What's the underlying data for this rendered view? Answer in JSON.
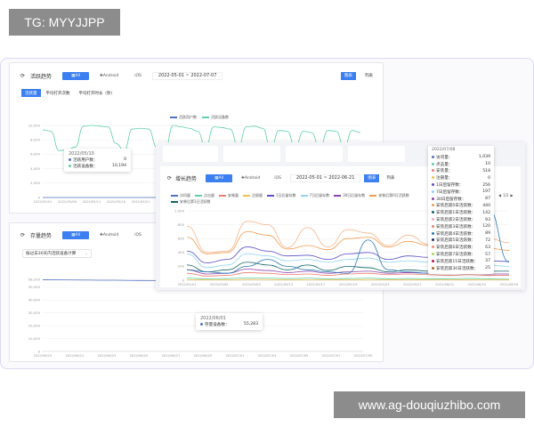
{
  "watermark_top": "TG: MYYJJPP",
  "watermark_bottom": "www.ag-douqiuzhibo.com",
  "filters": {
    "all": "All",
    "android": "Android",
    "ios": "iOS"
  },
  "view": {
    "chart": "图表",
    "list": "列表"
  },
  "active": {
    "title": "活跃趋势",
    "date_range": "2022-05-01 ~ 2022-07-07",
    "tabs": [
      "活跃量",
      "平均打开次数",
      "平均打开时长（秒）"
    ],
    "tooltip": {
      "date": "2022/05/10",
      "rows": [
        {
          "label": "活跃用户数：",
          "value": "0",
          "color": "#5470c6"
        },
        {
          "label": "活跃设备数：",
          "value": "10,194",
          "color": "#5fd0a6"
        }
      ]
    }
  },
  "growth": {
    "title": "增长趋势",
    "date_range": "2022-05-01 ~ 2022-06-21",
    "pager": "1/2",
    "tooltip": {
      "date": "2022/07/08",
      "rows": [
        {
          "label": "访问量：",
          "value": "1,039",
          "color": "#5470c6"
        },
        {
          "label": "点击量：",
          "value": "10",
          "color": "#5fd0a6"
        },
        {
          "label": "安装量：",
          "value": "518",
          "color": "#ee7b6e"
        },
        {
          "label": "注册量：",
          "value": "0",
          "color": "#f2c14e"
        },
        {
          "label": "1日后留存数：",
          "value": "256",
          "color": "#5b4fc9"
        },
        {
          "label": "7日后留存数：",
          "value": "197",
          "color": "#8fd3f0"
        },
        {
          "label": "30日后留存数：",
          "value": "87",
          "color": "#8e44ad"
        },
        {
          "label": "安装后第0日活跃数：",
          "value": "440",
          "color": "#f39c4f"
        },
        {
          "label": "安装后第1日活跃数：",
          "value": "142",
          "color": "#116466"
        },
        {
          "label": "安装后第2日活跃数：",
          "value": "93",
          "color": "#f4a6c6"
        },
        {
          "label": "安装后第3日活跃数：",
          "value": "120",
          "color": "#e8826a"
        },
        {
          "label": "安装后第4日活跃数：",
          "value": "89",
          "color": "#2b7bb9"
        },
        {
          "label": "安装后第5日活跃数：",
          "value": "72",
          "color": "#1f2a6b"
        },
        {
          "label": "安装后第6日活跃数：",
          "value": "63",
          "color": "#f28c6f"
        },
        {
          "label": "安装后第7日活跃数：",
          "value": "57",
          "color": "#a8d65a"
        },
        {
          "label": "安装后第15日活跃数：",
          "value": "37",
          "color": "#c2185b"
        },
        {
          "label": "安装后第30日活跃数：",
          "value": "25",
          "color": "#b5651d"
        }
      ]
    }
  },
  "stock": {
    "title": "存量趋势",
    "select": "按过去30天内活跃设备计算",
    "tooltip": {
      "date": "2022/06/01",
      "rows": [
        {
          "label": "存量设备数：",
          "value": "55,283",
          "color": "#5470c6"
        }
      ]
    }
  },
  "chart_data": [
    {
      "type": "line",
      "legend": [
        "活跃用户数",
        "活跃设备数"
      ],
      "legend_position": "top",
      "ylim": [
        0,
        10000
      ],
      "yticks": [
        "0",
        "2,000",
        "4,000",
        "6,000",
        "8,000",
        "10,000"
      ],
      "xticks": [
        "2022/05/01",
        "2022/05/06",
        "2022/05/11",
        "2022/05/16",
        "2022/05/21"
      ],
      "series": [
        {
          "name": "活跃用户数",
          "color": "#5470c6",
          "values": [
            0,
            0,
            0,
            0,
            0,
            0,
            0,
            0,
            0,
            0,
            0,
            0,
            0,
            0,
            0,
            0,
            0,
            0,
            0,
            0,
            0,
            0,
            0,
            0,
            0,
            0,
            0,
            0,
            0,
            0,
            0,
            0,
            0,
            0,
            0,
            0,
            0,
            0,
            0,
            0
          ]
        },
        {
          "name": "活跃设备数",
          "color": "#5fd0a6",
          "values": [
            9400,
            9200,
            6500,
            6600,
            7000,
            9900,
            10000,
            9900,
            9800,
            7500,
            6500,
            9500,
            9600,
            9500,
            7000,
            6500,
            10000,
            9800,
            9600,
            9200,
            7000,
            9800,
            9700,
            9500,
            7000,
            9800,
            9900,
            9600,
            6800,
            9300,
            9200,
            7000,
            9200,
            9000,
            6800,
            9300,
            9200,
            7000,
            9300,
            9000
          ]
        }
      ]
    },
    {
      "type": "line",
      "legend": [
        "访问量",
        "点击量",
        "安装量",
        "注册量",
        "1日后留存数",
        "7日后留存数",
        "30日后留存数",
        "安装后第0日活跃数",
        "安装后第1日活跃数"
      ],
      "legend_position": "top",
      "ylim": [
        0,
        1000
      ],
      "yticks": [
        "0",
        "200",
        "400",
        "600",
        "800",
        "1,000"
      ],
      "xticks": [
        "2022/05/01",
        "2022/05/05",
        "2022/05/09",
        "2022/05/13",
        "2022/05/17",
        "2022/05/19",
        "2022/05/23",
        "2022/05/27",
        "2022/06/02",
        "2022/06/10",
        "2022/06/18"
      ],
      "series": [
        {
          "name": "安装后第0日活跃数·上",
          "color": "#f6b48a",
          "values": [
            780,
            400,
            420,
            850,
            800,
            470,
            760,
            480,
            730,
            680,
            500,
            650,
            520,
            640,
            650,
            600,
            540
          ]
        },
        {
          "name": "安装后第0日活跃数",
          "color": "#f39c4f",
          "values": [
            620,
            380,
            400,
            700,
            650,
            450,
            500,
            440,
            600,
            620,
            480,
            560,
            500,
            520,
            480,
            460,
            430
          ]
        },
        {
          "name": "1日后留存数",
          "color": "#5b4fc9",
          "values": [
            420,
            250,
            300,
            480,
            420,
            350,
            360,
            300,
            380,
            400,
            300,
            350,
            330,
            300,
            350,
            280,
            270
          ]
        },
        {
          "name": "7日后留存数",
          "color": "#8fd3f0",
          "values": [
            380,
            180,
            220,
            380,
            350,
            280,
            300,
            260,
            300,
            320,
            260,
            280,
            260,
            240,
            260,
            220,
            200
          ]
        },
        {
          "name": "安装后第1日活跃数",
          "color": "#116466",
          "values": [
            220,
            120,
            150,
            260,
            220,
            150,
            220,
            140,
            200,
            180,
            120,
            150,
            130,
            130,
            140,
            130,
            130
          ]
        },
        {
          "name": "30日后留存数",
          "color": "#8e44ad",
          "values": [
            150,
            90,
            100,
            160,
            140,
            110,
            130,
            100,
            120,
            130,
            100,
            110,
            100,
            110,
            100,
            90,
            90
          ]
        },
        {
          "name": "安装量",
          "color": "#ee7b6e",
          "values": [
            100,
            60,
            70,
            110,
            100,
            80,
            90,
            70,
            90,
            100,
            80,
            90,
            80,
            70,
            80,
            70,
            70
          ]
        },
        {
          "name": "点击量",
          "color": "#5fd0a6",
          "values": [
            30,
            20,
            25,
            35,
            30,
            25,
            30,
            20,
            25,
            30,
            20,
            25,
            20,
            20,
            25,
            20,
            15
          ]
        },
        {
          "name": "注册量",
          "color": "#f2c14e",
          "values": [
            10,
            5,
            8,
            12,
            10,
            8,
            10,
            6,
            8,
            10,
            6,
            8,
            6,
            6,
            8,
            5,
            5
          ]
        },
        {
          "name": "访问量",
          "color": "#2b7bb9",
          "values": [
            150,
            120,
            100,
            200,
            300,
            200,
            150,
            120,
            100,
            580,
            150,
            120,
            100,
            450,
            200,
            1020,
            260
          ]
        }
      ]
    },
    {
      "type": "line",
      "ylim": [
        0,
        56200
      ],
      "yticks": [
        "0",
        "10,000",
        "20,000",
        "30,000",
        "40,000",
        "50,000",
        "56,200"
      ],
      "xticks": [
        "2022/06/19",
        "2022/06/21",
        "2022/06/23",
        "2022/06/25",
        "2022/06/27",
        "2022/06/29",
        "2022/07/01",
        "2022/07/03",
        "2022/07/05",
        "2022/07/07",
        "2022/07/09"
      ],
      "series": [
        {
          "name": "存量设备数",
          "color": "#5470c6",
          "values": [
            55800,
            55700,
            55500,
            55300,
            55200,
            55283,
            55300,
            55400,
            55500,
            55600,
            55600
          ]
        }
      ]
    }
  ]
}
